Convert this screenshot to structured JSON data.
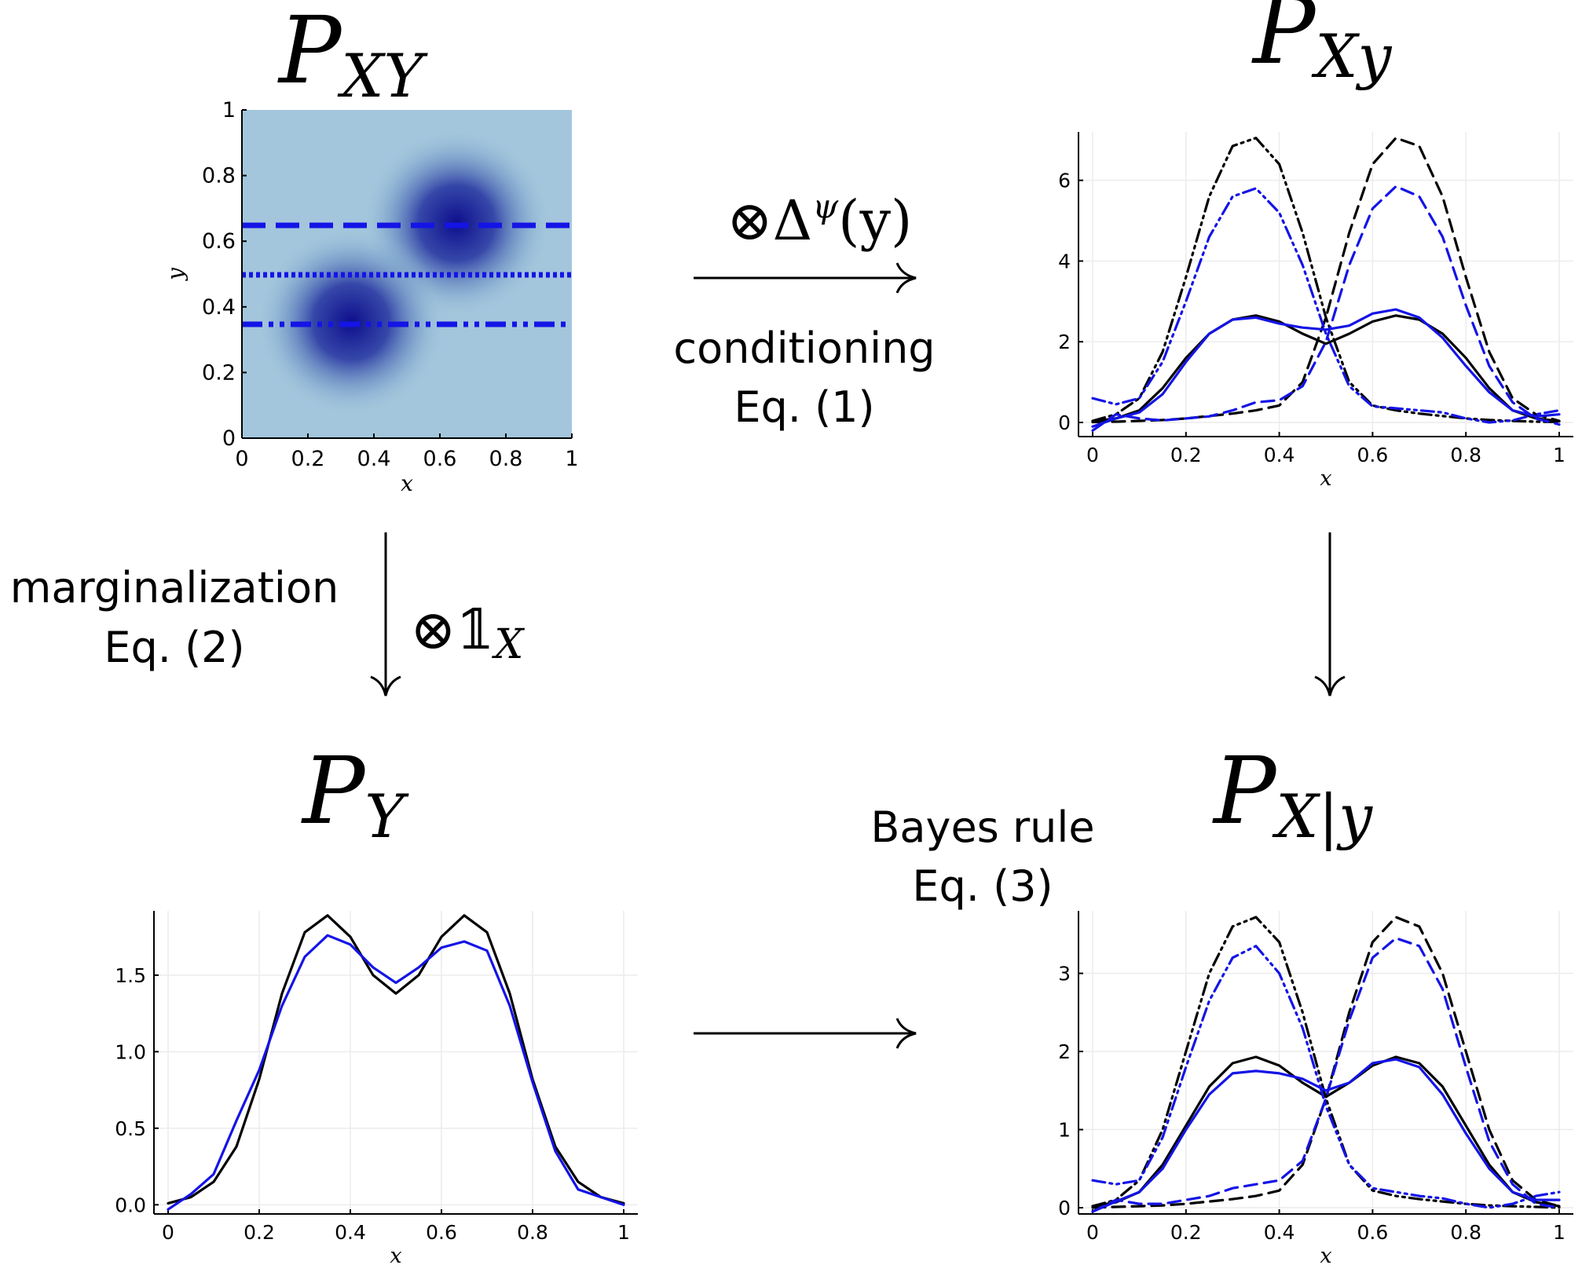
{
  "titles": {
    "pxy": {
      "main": "P",
      "sub": "XY"
    },
    "pxy_cond": {
      "main": "P",
      "sub": "Xy"
    },
    "py": {
      "main": "P",
      "sub": "Y"
    },
    "px_given_y": {
      "main": "P",
      "sub": "X|y"
    }
  },
  "labels": {
    "conditioning": "conditioning",
    "eq1": "Eq. (1)",
    "marginalization": "marginalization",
    "eq2": "Eq. (2)",
    "bayes": "Bayes rule",
    "eq3": "Eq. (3)"
  },
  "operators": {
    "conditioning": {
      "main": "⊗Δ",
      "sup": "ψ",
      "tail": "(y)"
    },
    "marginalization": {
      "main": "⊗𝟙",
      "sub": "X"
    }
  },
  "colors": {
    "estimate": "#1414e6",
    "truth": "#000000",
    "heatmap_background": "#a3c6dc",
    "heatmap_peak": "#0d0d8c"
  },
  "panels": {
    "heatmap": {
      "xlabel": "x",
      "ylabel": "y",
      "xticks": [
        "0",
        "0.2",
        "0.4",
        "0.6",
        "0.8",
        "1"
      ],
      "yticks": [
        "0",
        "0.2",
        "0.4",
        "0.6",
        "0.8",
        "1"
      ]
    }
  },
  "chart_data": [
    {
      "type": "heatmap",
      "xlabel": "x",
      "ylabel": "y",
      "xlim": [
        0,
        1
      ],
      "ylim": [
        0,
        1
      ],
      "modes": [
        {
          "x": 0.35,
          "y": 0.35
        },
        {
          "x": 0.65,
          "y": 0.65
        }
      ],
      "slices_y": [
        0.65,
        0.5,
        0.35
      ]
    },
    {
      "type": "line",
      "xlabel": "x",
      "xlim": [
        0,
        1
      ],
      "ylim": [
        -0.35,
        7.2
      ],
      "xticks": [
        "0",
        "0.2",
        "0.4",
        "0.6",
        "0.8",
        "1"
      ],
      "yticks": [
        "0",
        "2",
        "4",
        "6"
      ],
      "yticks_values": [
        0,
        2,
        4,
        6
      ],
      "x": [
        0,
        0.05,
        0.1,
        0.15,
        0.2,
        0.25,
        0.3,
        0.35,
        0.4,
        0.45,
        0.5,
        0.55,
        0.6,
        0.65,
        0.7,
        0.75,
        0.8,
        0.85,
        0.9,
        0.95,
        1.0
      ],
      "series": [
        {
          "style": "dashdot",
          "color": "#000000",
          "values": [
            0.04,
            0.2,
            0.6,
            1.75,
            3.6,
            5.6,
            6.85,
            7.05,
            6.4,
            4.7,
            2.6,
            1.0,
            0.42,
            0.3,
            0.22,
            0.16,
            0.1,
            0.06,
            0.04,
            0.02,
            0.01
          ]
        },
        {
          "style": "dashed",
          "color": "#000000",
          "values": [
            0.01,
            0.02,
            0.04,
            0.06,
            0.1,
            0.16,
            0.22,
            0.3,
            0.42,
            1.0,
            2.6,
            4.7,
            6.4,
            7.05,
            6.85,
            5.6,
            3.6,
            1.75,
            0.6,
            0.2,
            0.04
          ]
        },
        {
          "style": "solid",
          "color": "#000000",
          "values": [
            0.03,
            0.1,
            0.3,
            0.85,
            1.6,
            2.2,
            2.55,
            2.65,
            2.5,
            2.2,
            1.95,
            2.2,
            2.5,
            2.65,
            2.55,
            2.2,
            1.6,
            0.85,
            0.3,
            0.1,
            0.03
          ]
        },
        {
          "style": "dashdot",
          "color": "#1414e6",
          "values": [
            0.6,
            0.45,
            0.6,
            1.5,
            3.0,
            4.6,
            5.6,
            5.8,
            5.2,
            3.9,
            2.2,
            0.9,
            0.4,
            0.35,
            0.3,
            0.25,
            0.1,
            0.0,
            0.05,
            0.2,
            0.3
          ]
        },
        {
          "style": "dashed",
          "color": "#1414e6",
          "values": [
            -0.2,
            0.2,
            0.1,
            0.05,
            0.1,
            0.15,
            0.3,
            0.5,
            0.55,
            0.9,
            2.0,
            3.9,
            5.3,
            5.85,
            5.6,
            4.6,
            2.9,
            1.4,
            0.5,
            0.1,
            -0.05
          ]
        },
        {
          "style": "solid",
          "color": "#1414e6",
          "values": [
            -0.1,
            0.1,
            0.25,
            0.7,
            1.5,
            2.2,
            2.55,
            2.6,
            2.45,
            2.35,
            2.3,
            2.4,
            2.7,
            2.8,
            2.6,
            2.1,
            1.4,
            0.75,
            0.3,
            0.15,
            0.2
          ]
        }
      ]
    },
    {
      "type": "line",
      "xlabel": "x",
      "xlim": [
        0,
        1
      ],
      "ylim": [
        -0.06,
        1.92
      ],
      "xticks": [
        "0",
        "0.2",
        "0.4",
        "0.6",
        "0.8",
        "1"
      ],
      "yticks": [
        "0.0",
        "0.5",
        "1.0",
        "1.5"
      ],
      "yticks_values": [
        0,
        0.5,
        1.0,
        1.5
      ],
      "x": [
        0,
        0.05,
        0.1,
        0.15,
        0.2,
        0.25,
        0.3,
        0.35,
        0.4,
        0.45,
        0.5,
        0.55,
        0.6,
        0.65,
        0.7,
        0.75,
        0.8,
        0.85,
        0.9,
        0.95,
        1.0
      ],
      "series": [
        {
          "style": "solid",
          "color": "#000000",
          "values": [
            0.01,
            0.05,
            0.15,
            0.38,
            0.82,
            1.38,
            1.78,
            1.89,
            1.75,
            1.5,
            1.38,
            1.5,
            1.75,
            1.89,
            1.78,
            1.38,
            0.82,
            0.38,
            0.15,
            0.05,
            0.01
          ]
        },
        {
          "style": "solid",
          "color": "#1414e6",
          "values": [
            -0.03,
            0.07,
            0.2,
            0.55,
            0.88,
            1.3,
            1.62,
            1.76,
            1.7,
            1.55,
            1.45,
            1.55,
            1.68,
            1.72,
            1.66,
            1.3,
            0.8,
            0.35,
            0.1,
            0.05,
            0.0
          ]
        }
      ]
    },
    {
      "type": "line",
      "xlabel": "x",
      "xlim": [
        0,
        1
      ],
      "ylim": [
        -0.08,
        3.8
      ],
      "xticks": [
        "0",
        "0.2",
        "0.4",
        "0.6",
        "0.8",
        "1"
      ],
      "yticks": [
        "0",
        "1",
        "2",
        "3"
      ],
      "yticks_values": [
        0,
        1,
        2,
        3
      ],
      "x": [
        0,
        0.05,
        0.1,
        0.15,
        0.2,
        0.25,
        0.3,
        0.35,
        0.4,
        0.45,
        0.5,
        0.55,
        0.6,
        0.65,
        0.7,
        0.75,
        0.8,
        0.85,
        0.9,
        0.95,
        1.0
      ],
      "series": [
        {
          "style": "dashdot",
          "color": "#000000",
          "values": [
            0.02,
            0.1,
            0.35,
            1.0,
            2.0,
            3.0,
            3.6,
            3.72,
            3.4,
            2.5,
            1.4,
            0.55,
            0.22,
            0.15,
            0.11,
            0.08,
            0.05,
            0.03,
            0.02,
            0.01,
            0.0
          ]
        },
        {
          "style": "dashed",
          "color": "#000000",
          "values": [
            0.0,
            0.01,
            0.02,
            0.03,
            0.05,
            0.08,
            0.11,
            0.15,
            0.22,
            0.55,
            1.4,
            2.5,
            3.4,
            3.72,
            3.6,
            3.0,
            2.0,
            1.0,
            0.35,
            0.1,
            0.02
          ]
        },
        {
          "style": "solid",
          "color": "#000000",
          "values": [
            0.02,
            0.07,
            0.2,
            0.55,
            1.05,
            1.55,
            1.85,
            1.93,
            1.82,
            1.6,
            1.42,
            1.6,
            1.82,
            1.93,
            1.85,
            1.55,
            1.05,
            0.55,
            0.2,
            0.07,
            0.02
          ]
        },
        {
          "style": "dashdot",
          "color": "#1414e6",
          "values": [
            0.35,
            0.3,
            0.35,
            0.9,
            1.8,
            2.65,
            3.2,
            3.35,
            3.0,
            2.3,
            1.3,
            0.55,
            0.25,
            0.2,
            0.15,
            0.12,
            0.05,
            0.0,
            0.05,
            0.15,
            0.2
          ]
        },
        {
          "style": "dashed",
          "color": "#1414e6",
          "values": [
            -0.05,
            0.1,
            0.05,
            0.05,
            0.1,
            0.15,
            0.25,
            0.3,
            0.35,
            0.6,
            1.4,
            2.4,
            3.2,
            3.45,
            3.35,
            2.8,
            1.8,
            0.85,
            0.3,
            0.05,
            0.0
          ]
        },
        {
          "style": "solid",
          "color": "#1414e6",
          "values": [
            -0.05,
            0.08,
            0.2,
            0.5,
            1.0,
            1.45,
            1.72,
            1.75,
            1.72,
            1.65,
            1.5,
            1.6,
            1.85,
            1.9,
            1.8,
            1.45,
            0.95,
            0.5,
            0.2,
            0.1,
            0.1
          ]
        }
      ]
    }
  ]
}
